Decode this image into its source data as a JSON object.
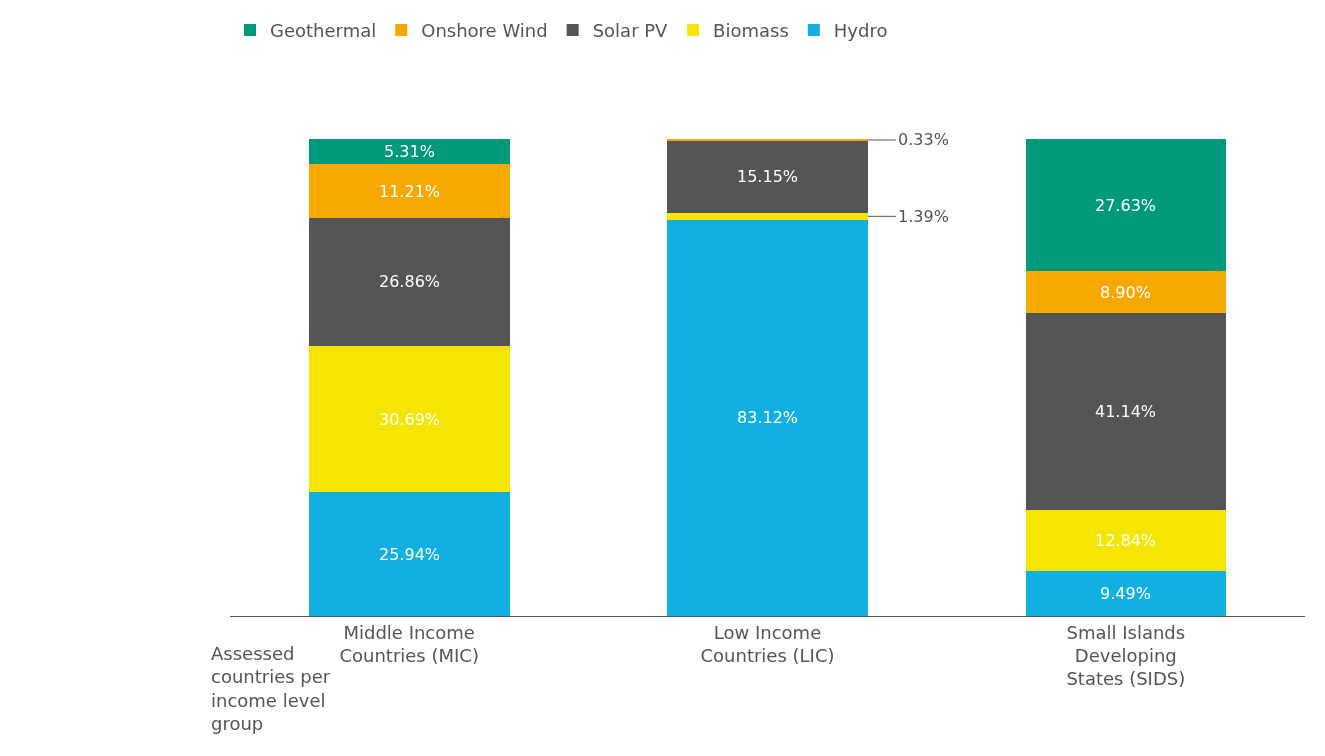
{
  "chart_data": {
    "type": "bar",
    "stacked": true,
    "categories": [
      "Middle Income\nCountries (MIC)",
      "Low Income\nCountries (LIC)",
      "Small Islands\nDeveloping\nStates (SIDS)"
    ],
    "series": [
      {
        "name": "Hydro",
        "color": "#12b0e0",
        "values": [
          25.94,
          83.12,
          9.49
        ],
        "value_labels": [
          "25.94%",
          "83.12%",
          "9.49%"
        ]
      },
      {
        "name": "Biomass",
        "color": "#f5e600",
        "values": [
          30.69,
          1.39,
          12.84
        ],
        "value_labels": [
          "30.69%",
          "1.39%",
          "12.84%"
        ]
      },
      {
        "name": "Solar PV",
        "color": "#555555",
        "values": [
          26.86,
          15.15,
          41.14
        ],
        "value_labels": [
          "26.86%",
          "15.15%",
          "41.14%"
        ]
      },
      {
        "name": "Onshore Wind",
        "color": "#f5a800",
        "values": [
          11.21,
          0.33,
          8.9
        ],
        "value_labels": [
          "11.21%",
          "0.33%",
          "8.90%"
        ]
      },
      {
        "name": "Geothermal",
        "color": "#009a7a",
        "values": [
          5.31,
          null,
          27.63
        ],
        "value_labels": [
          "5.31%",
          null,
          "27.63%"
        ]
      }
    ],
    "annotations": [
      "Assessed\ncountries per\nincome level\ngroup"
    ],
    "legend": "top left",
    "tick_labels": "x",
    "grid": false
  }
}
